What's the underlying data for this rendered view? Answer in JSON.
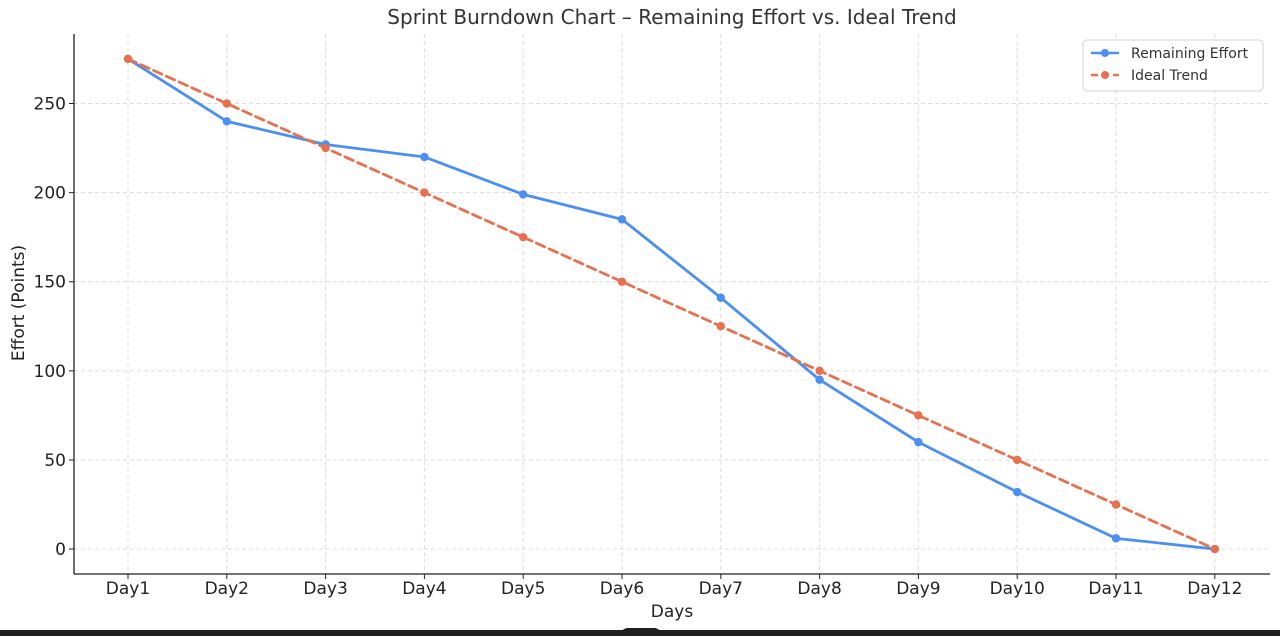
{
  "chart_data": {
    "type": "line",
    "title": "Sprint Burndown Chart – Remaining Effort vs. Ideal Trend",
    "xlabel": "Days",
    "ylabel": "Effort (Points)",
    "categories": [
      "Day1",
      "Day2",
      "Day3",
      "Day4",
      "Day5",
      "Day6",
      "Day7",
      "Day8",
      "Day9",
      "Day10",
      "Day11",
      "Day12"
    ],
    "ylim": [
      -14,
      289
    ],
    "yticks": [
      0,
      50,
      100,
      150,
      200,
      250
    ],
    "grid": true,
    "legend_position": "top-right",
    "series": [
      {
        "name": "Remaining Effort",
        "color": "#4c8ff2",
        "line_style": "solid",
        "values": [
          275,
          240,
          227,
          220,
          199,
          185,
          141,
          95,
          60,
          32,
          6,
          0
        ]
      },
      {
        "name": "Ideal Trend",
        "color": "#e8704f",
        "line_style": "dashed",
        "values": [
          275,
          250,
          225,
          200,
          175,
          150,
          125,
          100,
          75,
          50,
          25,
          0
        ]
      }
    ]
  }
}
